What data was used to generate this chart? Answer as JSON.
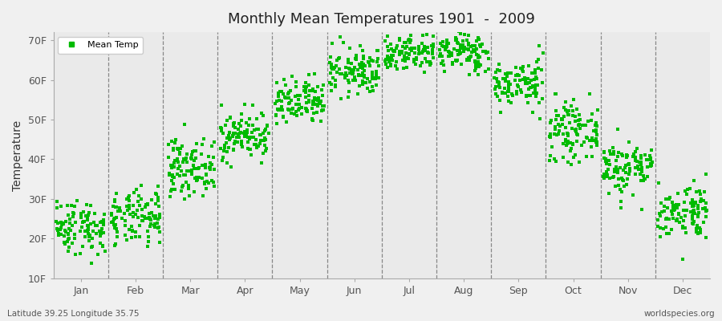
{
  "title": "Monthly Mean Temperatures 1901  -  2009",
  "ylabel": "Temperature",
  "xlabel_months": [
    "Jan",
    "Feb",
    "Mar",
    "Apr",
    "May",
    "Jun",
    "Jul",
    "Aug",
    "Sep",
    "Oct",
    "Nov",
    "Dec"
  ],
  "yticks": [
    10,
    20,
    30,
    40,
    50,
    60,
    70
  ],
  "ytick_labels": [
    "10F",
    "20F",
    "30F",
    "40F",
    "50F",
    "60F",
    "70F"
  ],
  "ylim": [
    10,
    72
  ],
  "dot_color": "#00bb00",
  "bg_color": "#f0f0f0",
  "plot_bg": "#eaeaea",
  "legend_label": "Mean Temp",
  "bottom_left": "Latitude 39.25 Longitude 35.75",
  "bottom_right": "worldspecies.org",
  "monthly_means": [
    23,
    25,
    38,
    46,
    54,
    62,
    67,
    67,
    59,
    47,
    38,
    27
  ],
  "monthly_stds": [
    3.5,
    3.5,
    3.5,
    3.0,
    3.0,
    3.0,
    2.5,
    2.5,
    3.0,
    3.5,
    3.5,
    3.5
  ],
  "n_years": 109,
  "seed": 42
}
